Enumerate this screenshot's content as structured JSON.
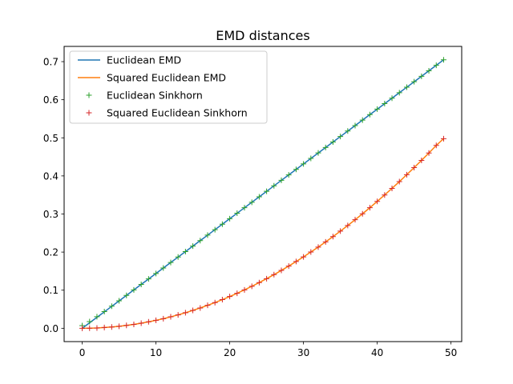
{
  "chart_data": {
    "type": "line",
    "title": "EMD distances",
    "xlabel": "",
    "ylabel": "",
    "xlim": [
      -2.45,
      51.45
    ],
    "ylim": [
      -0.035,
      0.74
    ],
    "xticks": [
      0,
      10,
      20,
      30,
      40,
      50
    ],
    "xtick_labels": [
      "0",
      "10",
      "20",
      "30",
      "40",
      "50"
    ],
    "yticks": [
      0.0,
      0.1,
      0.2,
      0.3,
      0.4,
      0.5,
      0.6,
      0.7
    ],
    "ytick_labels": [
      "0.0",
      "0.1",
      "0.2",
      "0.3",
      "0.4",
      "0.5",
      "0.6",
      "0.7"
    ],
    "grid": false,
    "legend_position": "upper left",
    "x": [
      0,
      1,
      2,
      3,
      4,
      5,
      6,
      7,
      8,
      9,
      10,
      11,
      12,
      13,
      14,
      15,
      16,
      17,
      18,
      19,
      20,
      21,
      22,
      23,
      24,
      25,
      26,
      27,
      28,
      29,
      30,
      31,
      32,
      33,
      34,
      35,
      36,
      37,
      38,
      39,
      40,
      41,
      42,
      43,
      44,
      45,
      46,
      47,
      48,
      49
    ],
    "series": [
      {
        "name": "Euclidean EMD",
        "style": "line",
        "color": "#1f77b4",
        "values": [
          0.0,
          0.0144,
          0.0288,
          0.0431,
          0.0575,
          0.0719,
          0.0863,
          0.1007,
          0.1151,
          0.1294,
          0.1438,
          0.1582,
          0.1726,
          0.187,
          0.2013,
          0.2157,
          0.2301,
          0.2445,
          0.2589,
          0.2732,
          0.2876,
          0.302,
          0.3164,
          0.3308,
          0.3451,
          0.3595,
          0.3739,
          0.3883,
          0.4027,
          0.4171,
          0.4314,
          0.4458,
          0.4602,
          0.4746,
          0.489,
          0.5033,
          0.5177,
          0.5321,
          0.5465,
          0.5609,
          0.5752,
          0.5896,
          0.604,
          0.6184,
          0.6328,
          0.6471,
          0.6615,
          0.6759,
          0.6903,
          0.7047
        ]
      },
      {
        "name": "Squared Euclidean EMD",
        "style": "line",
        "color": "#ff7f0e",
        "values": [
          0.0,
          0.0002,
          0.0008,
          0.0019,
          0.0033,
          0.0052,
          0.0075,
          0.0102,
          0.0133,
          0.0169,
          0.0208,
          0.0252,
          0.03,
          0.0352,
          0.0408,
          0.0469,
          0.0533,
          0.0602,
          0.0675,
          0.0752,
          0.0833,
          0.0918,
          0.1008,
          0.1102,
          0.12,
          0.1302,
          0.1408,
          0.1518,
          0.1633,
          0.1752,
          0.1874,
          0.2001,
          0.2132,
          0.2267,
          0.2407,
          0.255,
          0.2698,
          0.2849,
          0.3005,
          0.3165,
          0.3332,
          0.3499,
          0.3673,
          0.385,
          0.4032,
          0.4218,
          0.4408,
          0.4602,
          0.4801,
          0.4978
        ]
      },
      {
        "name": "Euclidean Sinkhorn",
        "style": "markers",
        "marker": "+",
        "color": "#2ca02c",
        "values": [
          0.007,
          0.0174,
          0.0304,
          0.0438,
          0.0579,
          0.0721,
          0.0864,
          0.1008,
          0.1151,
          0.1295,
          0.1439,
          0.1583,
          0.1727,
          0.187,
          0.2014,
          0.2158,
          0.2302,
          0.2446,
          0.2589,
          0.2733,
          0.2877,
          0.3021,
          0.3165,
          0.3308,
          0.3452,
          0.3596,
          0.374,
          0.3884,
          0.4027,
          0.4171,
          0.4315,
          0.4459,
          0.4603,
          0.4746,
          0.489,
          0.5034,
          0.5178,
          0.5322,
          0.5465,
          0.5609,
          0.5753,
          0.5897,
          0.6041,
          0.6184,
          0.6328,
          0.6472,
          0.6616,
          0.676,
          0.6903,
          0.7047
        ]
      },
      {
        "name": "Squared Euclidean Sinkhorn",
        "style": "markers",
        "marker": "+",
        "color": "#d62728",
        "values": [
          0.0,
          0.0002,
          0.0008,
          0.0019,
          0.0033,
          0.0052,
          0.0075,
          0.0102,
          0.0133,
          0.0169,
          0.0208,
          0.0252,
          0.03,
          0.0352,
          0.0408,
          0.0469,
          0.0533,
          0.0602,
          0.0675,
          0.0752,
          0.0833,
          0.0918,
          0.1008,
          0.1102,
          0.12,
          0.1302,
          0.1408,
          0.1518,
          0.1633,
          0.1752,
          0.1874,
          0.2001,
          0.2132,
          0.2267,
          0.2407,
          0.255,
          0.2698,
          0.2849,
          0.3005,
          0.3165,
          0.3332,
          0.3499,
          0.3673,
          0.385,
          0.4032,
          0.4218,
          0.4408,
          0.4602,
          0.4801,
          0.4978
        ]
      }
    ]
  }
}
